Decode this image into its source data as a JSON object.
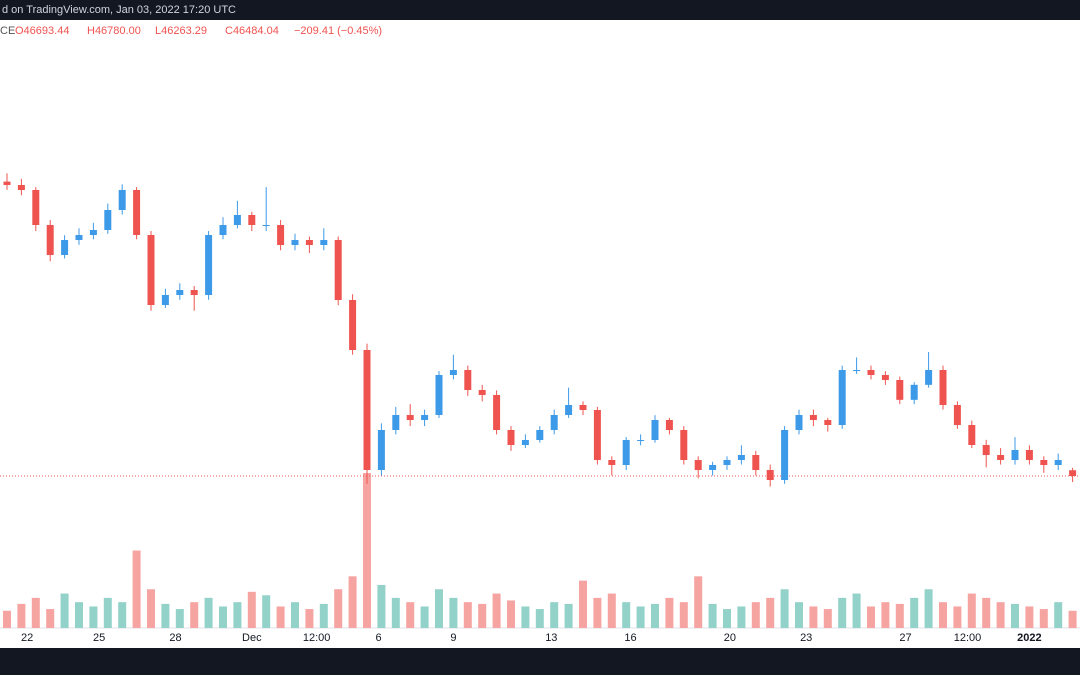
{
  "header": {
    "text": "d on TradingView.com, Jan 03, 2022 17:20 UTC"
  },
  "chart_data": {
    "type": "candlestick",
    "legend": {
      "symbol": "CE",
      "open": "O46693.44",
      "high": "H46780.00",
      "low": "L46263.29",
      "close": "C46484.04",
      "change": "−209.41 (−0.45%)"
    },
    "up_color": "#3d9ae8",
    "down_color": "#ef5350",
    "volume_up_color": "#93d2c9",
    "volume_down_color": "#f5a4a1",
    "ylim": [
      40223,
      63082
    ],
    "last_price_line": true,
    "candles": [
      [
        57200,
        57500,
        56900,
        57076
      ],
      [
        57076,
        57300,
        56700,
        56894
      ],
      [
        56894,
        57000,
        55400,
        55620
      ],
      [
        55620,
        55800,
        54300,
        54528
      ],
      [
        54528,
        55250,
        54400,
        55074
      ],
      [
        55074,
        55500,
        54900,
        55256
      ],
      [
        55256,
        55700,
        55100,
        55438
      ],
      [
        55438,
        56400,
        55300,
        56166
      ],
      [
        56166,
        57100,
        56000,
        56894
      ],
      [
        56894,
        57000,
        55100,
        55256
      ],
      [
        55256,
        55400,
        52500,
        52708
      ],
      [
        52708,
        53300,
        52600,
        53072
      ],
      [
        53072,
        53500,
        52900,
        53254
      ],
      [
        53254,
        53400,
        52500,
        53072
      ],
      [
        53072,
        55400,
        52900,
        55256
      ],
      [
        55256,
        55900,
        55100,
        55620
      ],
      [
        55620,
        56500,
        55500,
        55984
      ],
      [
        55984,
        56100,
        55400,
        55620
      ],
      [
        55620,
        57000,
        55400,
        55620
      ],
      [
        55620,
        55800,
        54700,
        54892
      ],
      [
        54892,
        55300,
        54700,
        55074
      ],
      [
        55074,
        55200,
        54600,
        54892
      ],
      [
        54892,
        55500,
        54700,
        55074
      ],
      [
        55074,
        55200,
        52700,
        52890
      ],
      [
        52890,
        53100,
        50900,
        51070
      ],
      [
        51070,
        51300,
        46200,
        46702
      ],
      [
        46702,
        48400,
        46500,
        48158
      ],
      [
        48158,
        49000,
        48000,
        48704
      ],
      [
        48704,
        49100,
        48300,
        48522
      ],
      [
        48522,
        48900,
        48300,
        48704
      ],
      [
        48704,
        50300,
        48600,
        50160
      ],
      [
        50160,
        50900,
        50000,
        50342
      ],
      [
        50342,
        50500,
        49400,
        49614
      ],
      [
        49614,
        49800,
        49200,
        49432
      ],
      [
        49432,
        49600,
        48000,
        48158
      ],
      [
        48158,
        48300,
        47400,
        47612
      ],
      [
        47612,
        48000,
        47500,
        47794
      ],
      [
        47794,
        48300,
        47700,
        48158
      ],
      [
        48158,
        48900,
        48000,
        48704
      ],
      [
        48704,
        49700,
        48600,
        49068
      ],
      [
        49068,
        49200,
        48700,
        48886
      ],
      [
        48886,
        49000,
        46900,
        47066
      ],
      [
        47066,
        47200,
        46500,
        46884
      ],
      [
        46884,
        47900,
        46700,
        47794
      ],
      [
        47794,
        48000,
        47600,
        47794
      ],
      [
        47794,
        48700,
        47700,
        48522
      ],
      [
        48522,
        48600,
        48000,
        48158
      ],
      [
        48158,
        48300,
        46900,
        47066
      ],
      [
        47066,
        47200,
        46400,
        46702
      ],
      [
        46702,
        47000,
        46500,
        46884
      ],
      [
        46884,
        47200,
        46700,
        47066
      ],
      [
        47066,
        47600,
        46900,
        47248
      ],
      [
        47248,
        47400,
        46500,
        46702
      ],
      [
        46702,
        46900,
        46100,
        46338
      ],
      [
        46338,
        48300,
        46200,
        48158
      ],
      [
        48158,
        48900,
        48000,
        48704
      ],
      [
        48704,
        48900,
        48300,
        48522
      ],
      [
        48522,
        48600,
        48100,
        48340
      ],
      [
        48340,
        50500,
        48200,
        50342
      ],
      [
        50342,
        50800,
        50200,
        50342
      ],
      [
        50342,
        50500,
        50000,
        50160
      ],
      [
        50160,
        50300,
        49800,
        49978
      ],
      [
        49978,
        50100,
        49100,
        49256
      ],
      [
        49256,
        49900,
        49100,
        49802
      ],
      [
        49802,
        51000,
        49700,
        50342
      ],
      [
        50342,
        50500,
        48900,
        49068
      ],
      [
        49068,
        49200,
        48200,
        48340
      ],
      [
        48340,
        48500,
        47500,
        47612
      ],
      [
        47612,
        47800,
        46800,
        47248
      ],
      [
        47248,
        47500,
        46900,
        47066
      ],
      [
        47066,
        47900,
        46900,
        47430
      ],
      [
        47430,
        47600,
        46900,
        47066
      ],
      [
        47066,
        47200,
        46600,
        46884
      ],
      [
        46884,
        47300,
        46700,
        47066
      ],
      [
        46693.44,
        46780.0,
        46263.29,
        46484.04
      ]
    ],
    "volumes": [
      20,
      28,
      35,
      22,
      40,
      30,
      25,
      35,
      30,
      90,
      45,
      28,
      22,
      30,
      35,
      25,
      30,
      42,
      38,
      25,
      30,
      22,
      28,
      45,
      60,
      180,
      50,
      35,
      30,
      25,
      45,
      35,
      30,
      28,
      40,
      32,
      25,
      22,
      30,
      28,
      55,
      35,
      40,
      30,
      25,
      28,
      35,
      30,
      60,
      28,
      22,
      25,
      30,
      35,
      45,
      30,
      25,
      22,
      35,
      40,
      25,
      30,
      28,
      35,
      45,
      30,
      25,
      40,
      35,
      30,
      28,
      25,
      22,
      30,
      20
    ],
    "xticks": [
      {
        "value": 1.4,
        "label": "22"
      },
      {
        "value": 6.4,
        "label": "25"
      },
      {
        "value": 11.7,
        "label": "28"
      },
      {
        "value": 17,
        "label": "Dec"
      },
      {
        "value": 21.5,
        "label": "12:00"
      },
      {
        "value": 25.8,
        "label": "6"
      },
      {
        "value": 31,
        "label": "9"
      },
      {
        "value": 37.8,
        "label": "13"
      },
      {
        "value": 43.3,
        "label": "16"
      },
      {
        "value": 50.2,
        "label": "20"
      },
      {
        "value": 55.5,
        "label": "23"
      },
      {
        "value": 62.4,
        "label": "27"
      },
      {
        "value": 66.7,
        "label": "12:00"
      },
      {
        "value": 71,
        "label": "2022"
      }
    ]
  }
}
